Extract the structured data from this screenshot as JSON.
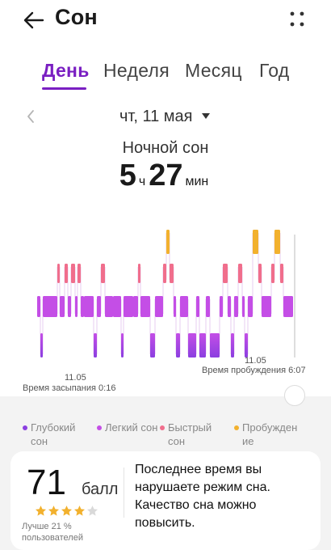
{
  "header": {
    "title": "Сон",
    "back_icon": "arrow-left-icon",
    "more_icon": "four-dots-icon"
  },
  "tabs": [
    {
      "label": "День",
      "active": true
    },
    {
      "label": "Неделя",
      "active": false
    },
    {
      "label": "Месяц",
      "active": false
    },
    {
      "label": "Год",
      "active": false
    }
  ],
  "date_selector": {
    "date": "чт, 11 мая",
    "prev_icon": "chevron-left-icon",
    "dropdown_icon": "caret-down-icon"
  },
  "summary": {
    "title": "Ночной сон",
    "hours": "5",
    "hours_unit": "ч",
    "minutes": "27",
    "minutes_unit": "мин"
  },
  "timeline": {
    "wake_date": "11.05",
    "wake_label": "Время пробуждения 6:07",
    "sleep_date": "11.05",
    "sleep_label": "Время засыпания 0:16"
  },
  "colors": {
    "deep": "#8b3fe0",
    "light": "#c44ee6",
    "rem": "#f06e8c",
    "awake": "#f2b12e",
    "accent": "#7a1fc2"
  },
  "legend": [
    {
      "label": "Глубокий сон",
      "color": "#8b3fe0"
    },
    {
      "label": "Легкий сон",
      "color": "#c44ee6"
    },
    {
      "label": "Быстрый сон",
      "color": "#f06e8c"
    },
    {
      "label": "Пробуждение",
      "color": "#f2b12e"
    }
  ],
  "score_card": {
    "score": "71",
    "score_unit": "балл",
    "stars_filled": 4,
    "stars_total": 5,
    "better_than": "Лучше 21 % пользователей",
    "advice": "Последнее время вы нарушаете режим сна. Качество сна можно повысить."
  }
}
